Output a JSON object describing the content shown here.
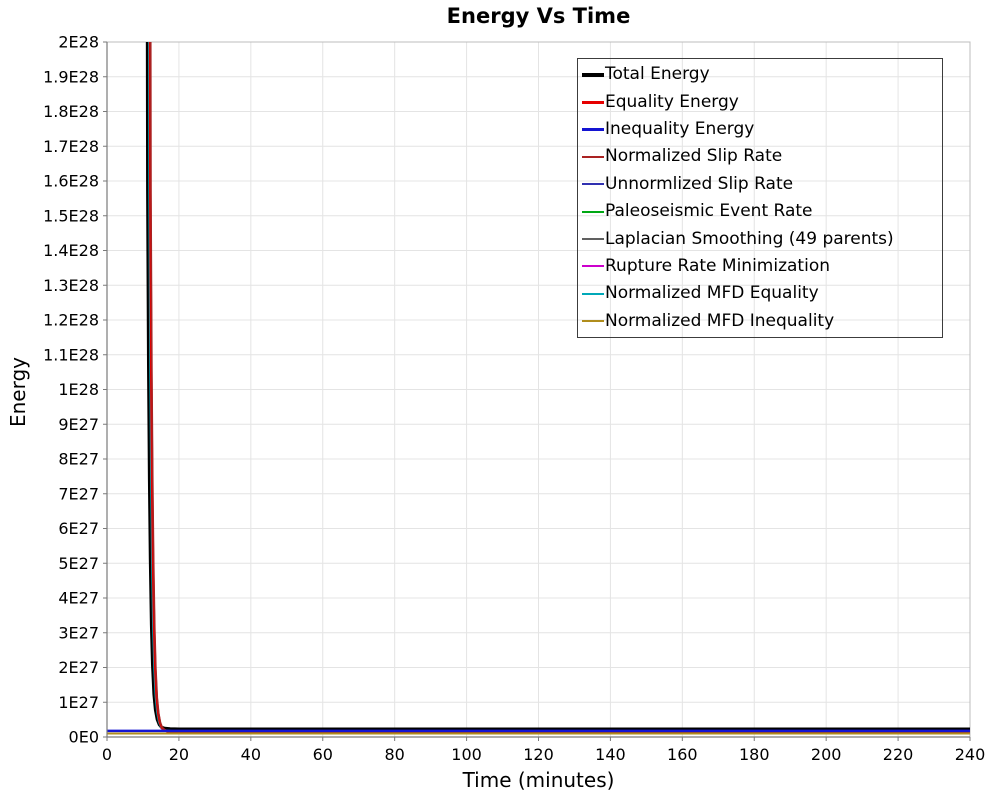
{
  "window": {
    "title": "Energy Vs Time"
  },
  "chart_data": {
    "type": "line",
    "title": "Energy Vs Time",
    "xlabel": "Time (minutes)",
    "ylabel": "Energy",
    "xlim": [
      0,
      240
    ],
    "ylim": [
      0,
      2e+28
    ],
    "grid": true,
    "legend_position": "top-right",
    "x_ticks": [
      "0",
      "20",
      "40",
      "60",
      "80",
      "100",
      "120",
      "140",
      "160",
      "180",
      "200",
      "220",
      "240"
    ],
    "y_ticks": [
      "2E28",
      "1.9E28",
      "1.8E28",
      "1.7E28",
      "1.6E28",
      "1.5E28",
      "1.4E28",
      "1.3E28",
      "1.2E28",
      "1.1E28",
      "1E28",
      "9E27",
      "8E27",
      "7E27",
      "6E27",
      "5E27",
      "4E27",
      "3E27",
      "2E27",
      "1E27",
      "0E0"
    ],
    "description": "All decaying series drop steeply from above 2E28 starting near t=11-12 minutes and flatten to near zero by t=20; Inequality Energy and Normalized MFD Inequality stay flat near zero for the whole 0-240 minute range.",
    "decay_start_min": 11.05,
    "decay_profile": [
      [
        0.0,
        3e+28
      ],
      [
        0.25,
        1.55e+28
      ],
      [
        0.5,
        1.05e+28
      ],
      [
        0.75,
        7.2e+27
      ],
      [
        1.0,
        4.9e+27
      ],
      [
        1.3,
        3e+27
      ],
      [
        1.6,
        1.85e+27
      ],
      [
        2.0,
        1e+27
      ],
      [
        2.4,
        5.5e+26
      ],
      [
        2.9,
        2.7e+26
      ],
      [
        3.5,
        1.2e+26
      ],
      [
        4.2,
        5e+25
      ],
      [
        5.0,
        2e+25
      ],
      [
        6.5,
        6e+24
      ],
      [
        9.0,
        1e+24
      ],
      [
        15.0,
        1e+23
      ]
    ],
    "series": [
      {
        "label": "Total Energy",
        "color": "#000000",
        "width": 3,
        "swatch_h": 4,
        "has_decay": true,
        "offset_min": 0.0,
        "flat": 2.3e+26
      },
      {
        "label": "Equality Energy",
        "color": "#e60000",
        "width": 2.5,
        "swatch_h": 3,
        "has_decay": true,
        "offset_min": 0.75,
        "flat": 1.45e+26
      },
      {
        "label": "Inequality Energy",
        "color": "#1414d2",
        "width": 2.5,
        "swatch_h": 3,
        "has_decay": false,
        "offset_min": 0.0,
        "flat": 1.75e+26
      },
      {
        "label": "Normalized Slip Rate",
        "color": "#aa2222",
        "width": 1.6,
        "swatch_h": 2,
        "has_decay": true,
        "offset_min": 0.95,
        "flat": 1.3e+26
      },
      {
        "label": "Unnormlized Slip Rate",
        "color": "#3030b0",
        "width": 1.6,
        "swatch_h": 2,
        "has_decay": true,
        "offset_min": 0.4,
        "flat": 1.6e+26
      },
      {
        "label": "Paleoseismic Event Rate",
        "color": "#00a814",
        "width": 2,
        "swatch_h": 2,
        "has_decay": true,
        "offset_min": 0.3,
        "flat": 1.7e+26
      },
      {
        "label": "Laplacian Smoothing (49 parents)",
        "color": "#606060",
        "width": 2,
        "swatch_h": 2,
        "has_decay": true,
        "offset_min": 0.12,
        "flat": 2e+26
      },
      {
        "label": "Rupture Rate Minimization",
        "color": "#cc00cc",
        "width": 2,
        "swatch_h": 2,
        "has_decay": true,
        "offset_min": 0.45,
        "flat": 1.5e+26
      },
      {
        "label": "Normalized MFD Equality",
        "color": "#00a8b8",
        "width": 2.2,
        "swatch_h": 2.5,
        "has_decay": true,
        "offset_min": 0.5,
        "flat": 1.65e+26
      },
      {
        "label": "Normalized MFD Inequality",
        "color": "#b08d1c",
        "width": 2,
        "swatch_h": 2,
        "has_decay": false,
        "offset_min": 0.0,
        "flat": 1e+26
      }
    ],
    "draw_order": [
      5,
      7,
      4,
      6,
      0,
      8,
      1,
      3,
      2,
      9
    ]
  }
}
